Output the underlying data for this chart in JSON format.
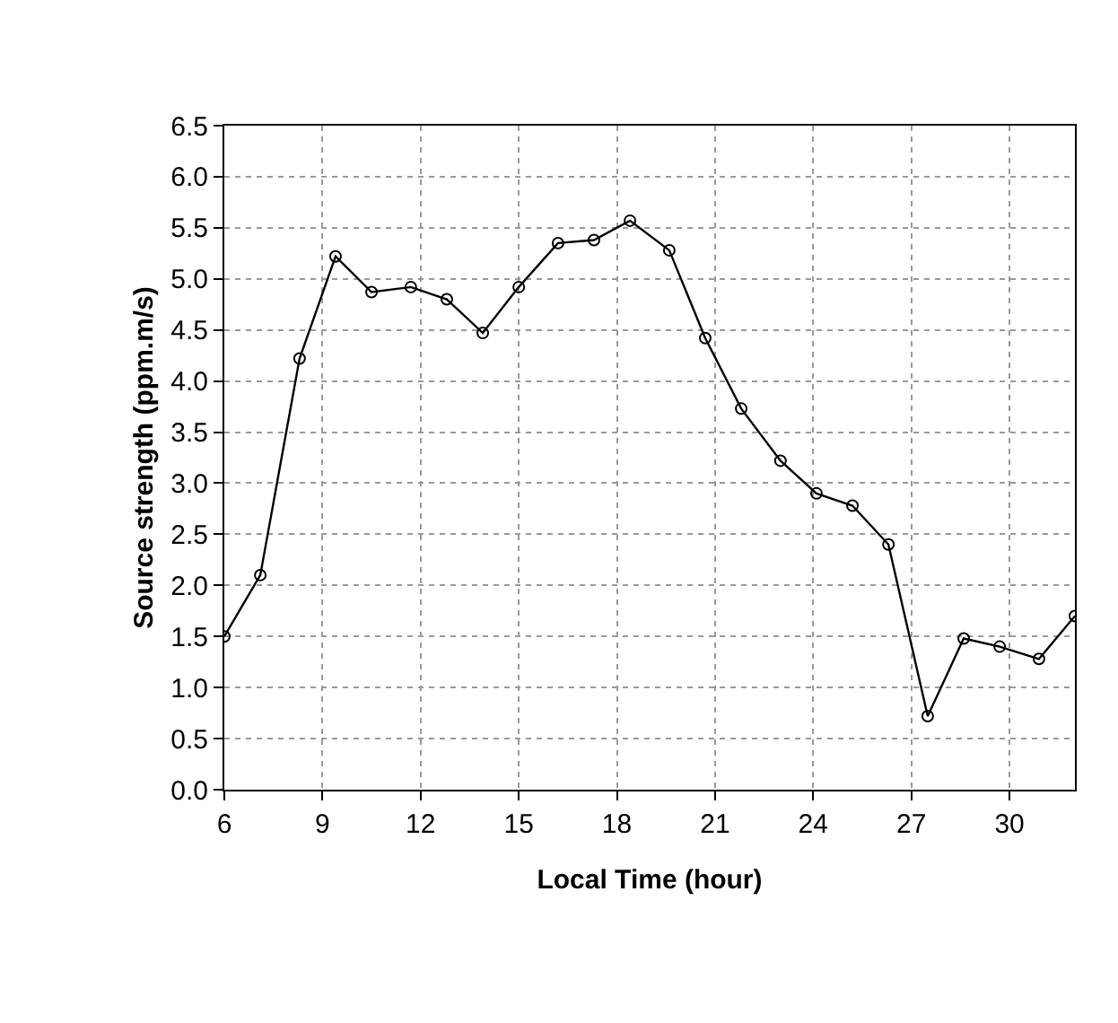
{
  "chart_data": {
    "type": "line",
    "xlabel": "Local Time (hour)",
    "ylabel": "Source strength (ppm.m/s)",
    "x": [
      6,
      7.1,
      8.3,
      9.4,
      10.5,
      11.7,
      12.8,
      13.9,
      15.0,
      16.2,
      17.3,
      18.4,
      19.6,
      20.7,
      21.8,
      23.0,
      24.1,
      25.2,
      26.3,
      27.5,
      28.6,
      29.7,
      30.9,
      32
    ],
    "series": [
      {
        "color": "#000000",
        "values": [
          1.5,
          2.1,
          4.22,
          5.22,
          4.87,
          4.92,
          4.8,
          4.47,
          4.92,
          5.35,
          5.38,
          5.57,
          5.28,
          4.42,
          3.73,
          3.22,
          2.9,
          2.78,
          2.4,
          0.72,
          1.48,
          1.4,
          1.28,
          1.7
        ]
      }
    ],
    "xlim": [
      6,
      32
    ],
    "xticks": [
      6,
      9,
      12,
      15,
      18,
      21,
      24,
      27,
      30
    ],
    "ylim": [
      0,
      6.5
    ],
    "yticks": [
      {
        "value": 0,
        "label": "0.0"
      },
      0.5,
      {
        "value": 1,
        "label": "1.0"
      },
      1.5,
      {
        "value": 2,
        "label": "2.0"
      },
      2.5,
      {
        "value": 3,
        "label": "3.0"
      },
      3.5,
      {
        "value": 4,
        "label": "4.0"
      },
      4.5,
      {
        "value": 5,
        "label": "5.0"
      },
      5.5,
      {
        "value": 6,
        "label": "6.0"
      },
      6.5
    ],
    "grid": true,
    "marker": "circle",
    "line_style": "solid",
    "legend": false
  }
}
